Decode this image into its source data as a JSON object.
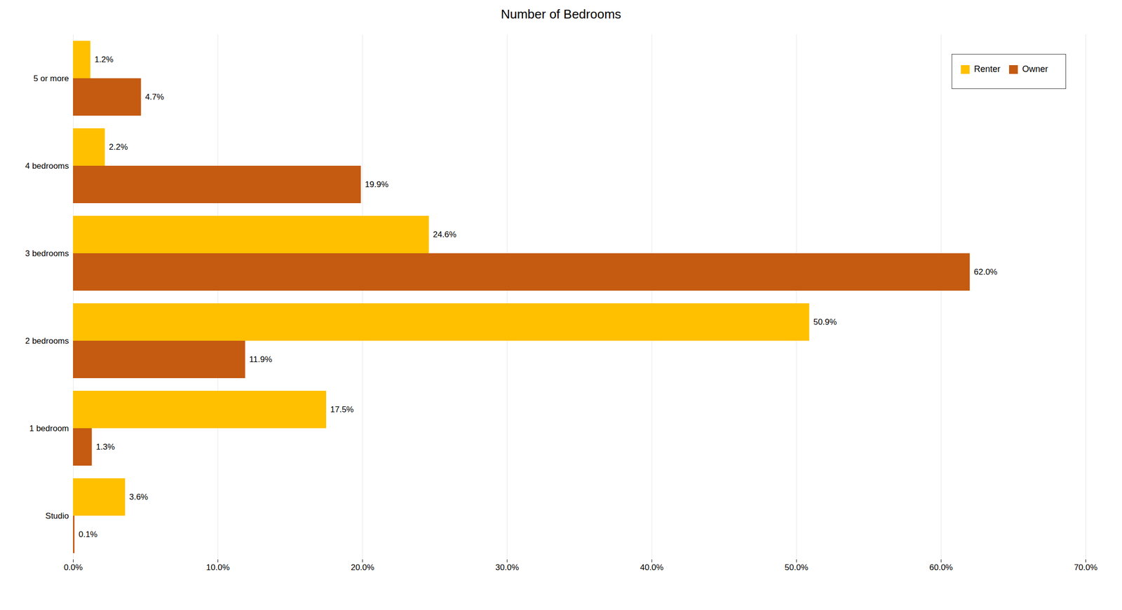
{
  "chart_data": {
    "type": "bar",
    "orientation": "horizontal",
    "title": "Number of Bedrooms",
    "categories": [
      "Studio",
      "1 bedroom",
      "2 bedrooms",
      "3 bedrooms",
      "4 bedrooms",
      "5 or more"
    ],
    "series": [
      {
        "name": "Renter",
        "color": "#FFC000",
        "values": [
          3.6,
          17.5,
          50.9,
          24.6,
          2.2,
          1.2
        ],
        "value_labels": [
          "3.6%",
          "17.5%",
          "50.9%",
          "24.6%",
          "2.2%",
          "1.2%"
        ]
      },
      {
        "name": "Owner",
        "color": "#C55A11",
        "values": [
          0.1,
          1.3,
          11.9,
          62.0,
          19.9,
          4.7
        ],
        "value_labels": [
          "0.1%",
          "1.3%",
          "11.9%",
          "62.0%",
          "19.9%",
          "4.7%"
        ]
      }
    ],
    "xlim": [
      0,
      70
    ],
    "xticks": [
      {
        "value": 0,
        "label": "0.0%"
      },
      {
        "value": 10,
        "label": "10.0%"
      },
      {
        "value": 20,
        "label": "20.0%"
      },
      {
        "value": 30,
        "label": "30.0%"
      },
      {
        "value": 40,
        "label": "40.0%"
      },
      {
        "value": 50,
        "label": "50.0%"
      },
      {
        "value": 60,
        "label": "60.0%"
      },
      {
        "value": 70,
        "label": "70.0%"
      }
    ],
    "grid": true,
    "legend": "upper right",
    "data_labels": true
  }
}
